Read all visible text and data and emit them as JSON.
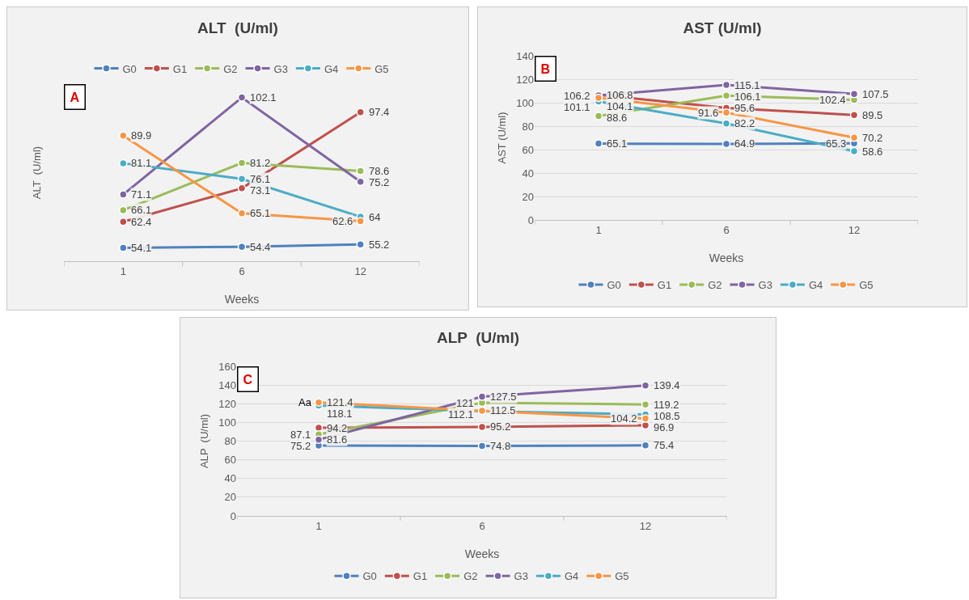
{
  "chart_data": [
    {
      "type": "line",
      "title": "ALT  (U/ml)",
      "xlabel": "Weeks",
      "ylabel": "ALT  (U/ml)",
      "categories": [
        "1",
        "6",
        "12"
      ],
      "tick_labels": "x",
      "grid": false,
      "legend": "top",
      "marker": "circle",
      "line_style": "solid",
      "data_labels": true,
      "annotations": [
        "A"
      ],
      "series": [
        {
          "name": "G0",
          "color": "#4f81bd",
          "values": [
            54.1,
            54.4,
            55.2
          ]
        },
        {
          "name": "G1",
          "color": "#c0504d",
          "values": [
            62.4,
            73.1,
            97.4
          ]
        },
        {
          "name": "G2",
          "color": "#9bbb59",
          "values": [
            66.1,
            81.2,
            78.6
          ]
        },
        {
          "name": "G3",
          "color": "#8064a2",
          "values": [
            71.1,
            102.1,
            75.2
          ]
        },
        {
          "name": "G4",
          "color": "#4bacc6",
          "values": [
            81.1,
            76.1,
            64
          ]
        },
        {
          "name": "G5",
          "color": "#f79646",
          "values": [
            89.9,
            65.1,
            62.6
          ]
        }
      ]
    },
    {
      "type": "line",
      "title": "AST (U/ml)",
      "xlabel": "Weeks",
      "ylabel": "AST (U/ml)",
      "categories": [
        "1",
        "6",
        "12"
      ],
      "ylim": [
        0,
        140
      ],
      "yticks": [
        0,
        20,
        40,
        60,
        80,
        100,
        120,
        140
      ],
      "grid": "y",
      "legend": "bottom",
      "marker": "circle",
      "line_style": "solid",
      "data_labels": true,
      "annotations": [
        "B"
      ],
      "series": [
        {
          "name": "G0",
          "color": "#4f81bd",
          "values": [
            65.1,
            64.9,
            65.3
          ]
        },
        {
          "name": "G1",
          "color": "#c0504d",
          "values": [
            106.8,
            95.6,
            89.5
          ]
        },
        {
          "name": "G2",
          "color": "#9bbb59",
          "values": [
            88.6,
            106.1,
            102.4
          ]
        },
        {
          "name": "G3",
          "color": "#8064a2",
          "values": [
            106.2,
            115.1,
            107.5
          ]
        },
        {
          "name": "G4",
          "color": "#4bacc6",
          "values": [
            101.1,
            82.2,
            58.6
          ]
        },
        {
          "name": "G5",
          "color": "#f79646",
          "values": [
            104.1,
            91.6,
            70.2
          ]
        }
      ]
    },
    {
      "type": "line",
      "title": "ALP  (U/ml)",
      "xlabel": "Weeks",
      "ylabel": "ALP  (U/ml)",
      "categories": [
        "1",
        "6",
        "12"
      ],
      "ylim": [
        0,
        160
      ],
      "yticks": [
        0,
        20,
        40,
        60,
        80,
        100,
        120,
        140,
        160
      ],
      "grid": "y",
      "legend": "bottom",
      "marker": "circle",
      "line_style": "solid",
      "data_labels": true,
      "annotations": [
        "C",
        {
          "text": "Aa",
          "x": "1",
          "y": 121.4
        }
      ],
      "series": [
        {
          "name": "G0",
          "color": "#4f81bd",
          "values": [
            75.2,
            74.8,
            75.4
          ]
        },
        {
          "name": "G1",
          "color": "#c0504d",
          "values": [
            94.2,
            95.2,
            96.9
          ]
        },
        {
          "name": "G2",
          "color": "#9bbb59",
          "values": [
            87.1,
            121,
            119.2
          ]
        },
        {
          "name": "G3",
          "color": "#8064a2",
          "values": [
            81.6,
            127.5,
            139.4
          ]
        },
        {
          "name": "G4",
          "color": "#4bacc6",
          "values": [
            118.1,
            112.1,
            108.5
          ]
        },
        {
          "name": "G5",
          "color": "#f79646",
          "values": [
            121.4,
            112.5,
            104.2
          ]
        }
      ]
    }
  ]
}
